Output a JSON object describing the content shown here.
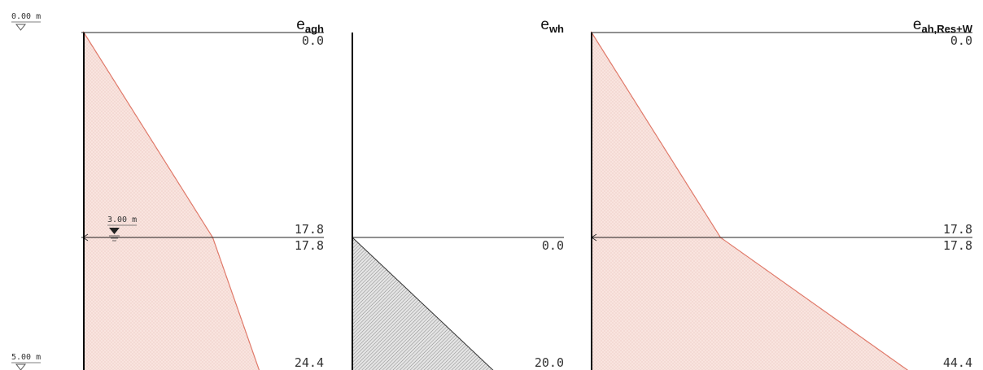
{
  "levels": {
    "top": {
      "label": "0.00 m",
      "depth": 0.0
    },
    "groundwater": {
      "label": "3.00 m",
      "depth": 3.0
    },
    "bottom": {
      "label": "5.00 m",
      "depth": 5.0
    }
  },
  "panels": [
    {
      "id": "agh",
      "title_main": "e",
      "title_sub": "agh",
      "fill": "earth",
      "profile": [
        {
          "depth": 0.0,
          "value": 0.0
        },
        {
          "depth": 3.0,
          "value": 17.8
        },
        {
          "depth": 5.0,
          "value": 24.4
        }
      ],
      "labels": [
        {
          "depth": 0.0,
          "text": "0.0",
          "pos": "below"
        },
        {
          "depth": 3.0,
          "text": "17.8",
          "pos": "above"
        },
        {
          "depth": 3.0,
          "text": "17.8",
          "pos": "below"
        },
        {
          "depth": 5.0,
          "text": "24.4",
          "pos": "above"
        }
      ]
    },
    {
      "id": "wh",
      "title_main": "e",
      "title_sub": "wh",
      "fill": "water",
      "profile": [
        {
          "depth": 3.0,
          "value": 0.0
        },
        {
          "depth": 5.0,
          "value": 20.0
        }
      ],
      "labels": [
        {
          "depth": 3.0,
          "text": "0.0",
          "pos": "below"
        },
        {
          "depth": 5.0,
          "text": "20.0",
          "pos": "above"
        }
      ]
    },
    {
      "id": "res",
      "title_main": "e",
      "title_sub": "ah,Res+W",
      "fill": "earth",
      "profile": [
        {
          "depth": 0.0,
          "value": 0.0
        },
        {
          "depth": 3.0,
          "value": 17.8
        },
        {
          "depth": 5.0,
          "value": 44.4
        }
      ],
      "labels": [
        {
          "depth": 0.0,
          "text": "0.0",
          "pos": "below"
        },
        {
          "depth": 3.0,
          "text": "17.8",
          "pos": "above"
        },
        {
          "depth": 3.0,
          "text": "17.8",
          "pos": "below"
        },
        {
          "depth": 5.0,
          "text": "44.4",
          "pos": "above"
        }
      ]
    }
  ],
  "colors": {
    "earth_stroke": "#e07a6a",
    "earth_fill": "#f9e4df",
    "dots": "#e0b2a8",
    "water_hatch": "#8a8a8a"
  }
}
